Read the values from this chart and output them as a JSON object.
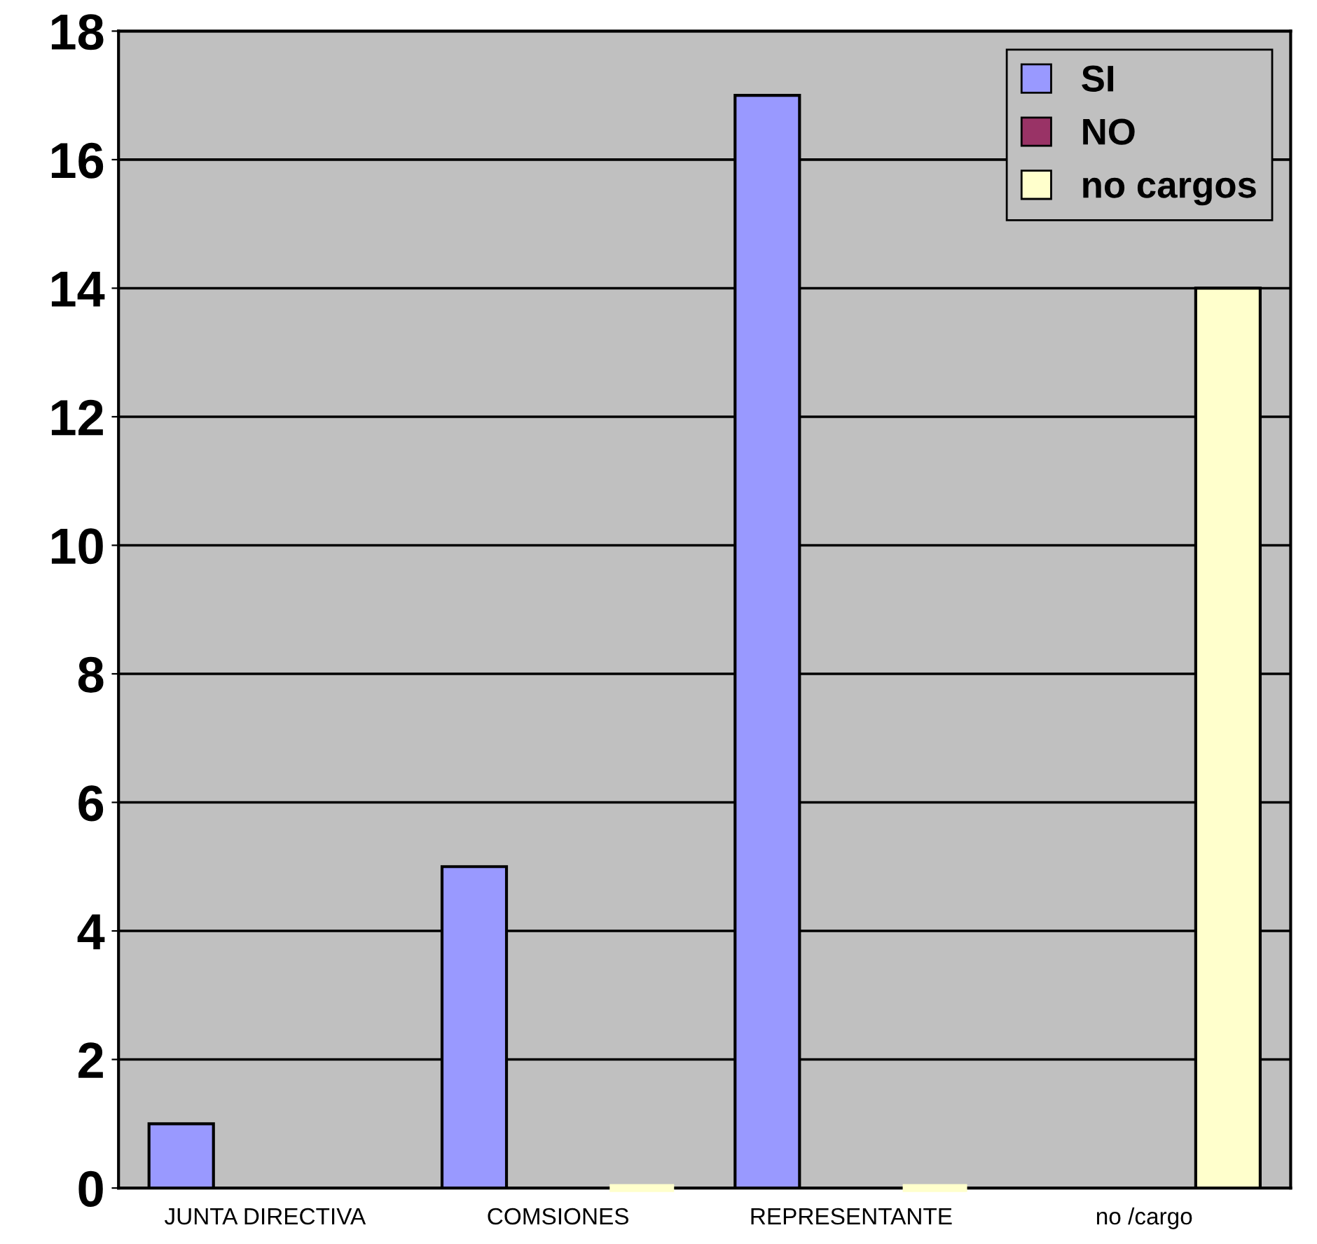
{
  "chart_data": {
    "type": "bar",
    "categories": [
      "JUNTA DIRECTIVA",
      "COMSIONES",
      "REPRESENTANTE",
      "no /cargo"
    ],
    "series": [
      {
        "name": "SI",
        "color": "#9999ff",
        "values": [
          1,
          5,
          17,
          null
        ]
      },
      {
        "name": "NO",
        "color": "#993366",
        "values": [
          null,
          null,
          null,
          null
        ]
      },
      {
        "name": "no cargos",
        "color": "#ffffcc",
        "values": [
          null,
          0,
          0,
          14
        ]
      }
    ],
    "ylim": [
      0,
      18
    ],
    "yticks": [
      0,
      2,
      4,
      6,
      8,
      10,
      12,
      14,
      16,
      18
    ],
    "grid": "y",
    "legend": "top right"
  }
}
